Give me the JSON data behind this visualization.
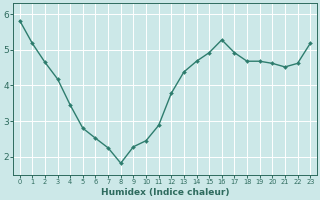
{
  "x": [
    0,
    1,
    2,
    3,
    4,
    5,
    6,
    7,
    8,
    9,
    10,
    11,
    12,
    13,
    14,
    15,
    16,
    17,
    18,
    19,
    20,
    21,
    22,
    23
  ],
  "y": [
    5.82,
    5.18,
    4.65,
    4.18,
    3.45,
    2.8,
    2.52,
    2.25,
    1.82,
    2.28,
    2.45,
    2.88,
    3.78,
    4.38,
    4.68,
    4.92,
    5.28,
    4.92,
    4.68,
    4.68,
    4.62,
    4.52,
    4.62,
    5.18
  ],
  "line_color": "#2e7d6e",
  "marker": "D",
  "marker_size": 2.0,
  "bg_color": "#cce8e8",
  "grid_color": "#ffffff",
  "xlabel": "Humidex (Indice chaleur)",
  "font_color": "#2e6b5e",
  "line_width": 1.0,
  "xlim": [
    -0.5,
    23.5
  ],
  "ylim": [
    1.5,
    6.3
  ],
  "yticks": [
    2,
    3,
    4,
    5,
    6
  ],
  "ytick_labels": [
    "2",
    "3",
    "4",
    "5",
    "6"
  ]
}
